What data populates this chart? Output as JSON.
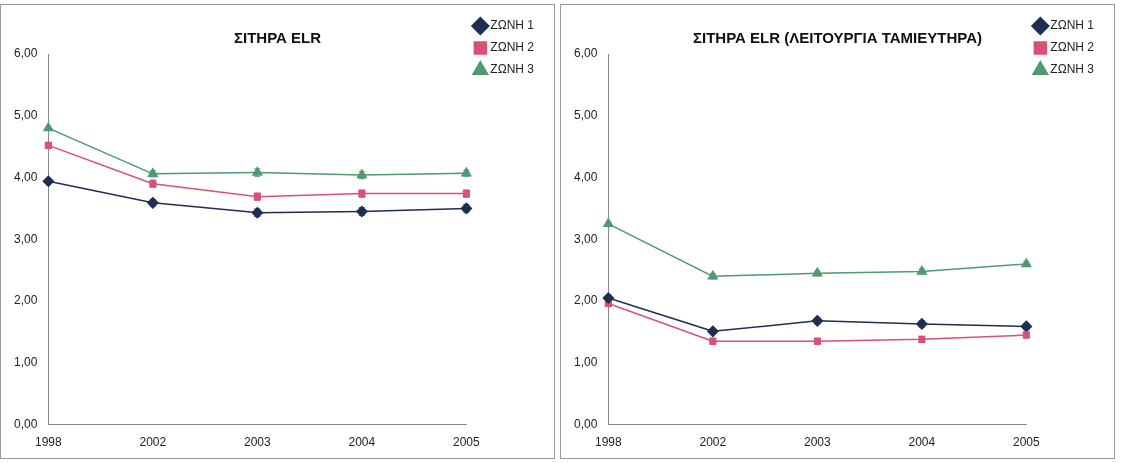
{
  "chart_data": [
    {
      "type": "line",
      "title": "ΣΙΤΗΡΑ ELR",
      "categories": [
        "1998",
        "2002",
        "2003",
        "2004",
        "2005"
      ],
      "series": [
        {
          "name": "ΖΩΝΗ 1",
          "color": "#1f2f4f",
          "marker": "diamond",
          "values": [
            3.94,
            3.59,
            3.43,
            3.45,
            3.5
          ],
          "errors": [
            null,
            0.05,
            0.06,
            0.06,
            0.06
          ]
        },
        {
          "name": "ΖΩΝΗ 2",
          "color": "#d9507a",
          "marker": "square",
          "values": [
            4.52,
            3.9,
            3.69,
            3.74,
            3.74
          ],
          "errors": [
            null,
            0.06,
            0.06,
            0.06,
            0.06
          ]
        },
        {
          "name": "ΖΩΝΗ 3",
          "color": "#4f9a6f",
          "marker": "triangle",
          "values": [
            4.8,
            4.06,
            4.08,
            4.04,
            4.07
          ],
          "errors": [
            null,
            0.05,
            0.06,
            0.06,
            0.05
          ]
        }
      ],
      "ylim": [
        0,
        6
      ],
      "yticks": [
        {
          "value": 0,
          "label": "0,00"
        },
        {
          "value": 1,
          "label": "1,00"
        },
        {
          "value": 2,
          "label": "2,00"
        },
        {
          "value": 3,
          "label": "3,00"
        },
        {
          "value": 4,
          "label": "4,00"
        },
        {
          "value": 5,
          "label": "5,00"
        },
        {
          "value": 6,
          "label": "6,00"
        }
      ],
      "grid": false,
      "legend": "top right"
    },
    {
      "type": "line",
      "title": "ΣΙΤΗΡΑ ELR (ΛΕΙΤΟΥΡΓΙΑ ΤΑΜΙΕΥΤΗΡΑ)",
      "categories": [
        "1998",
        "2002",
        "2003",
        "2004",
        "2005"
      ],
      "series": [
        {
          "name": "ΖΩΝΗ 1",
          "color": "#1f2f4f",
          "marker": "diamond",
          "values": [
            2.05,
            1.51,
            1.68,
            1.63,
            1.59
          ],
          "errors": [
            null,
            0.04,
            0.05,
            0.05,
            0.05
          ]
        },
        {
          "name": "ΖΩΝΗ 2",
          "color": "#d9507a",
          "marker": "square",
          "values": [
            1.96,
            1.35,
            1.35,
            1.38,
            1.45
          ],
          "errors": [
            null,
            0.05,
            0.05,
            0.05,
            0.05
          ]
        },
        {
          "name": "ΖΩΝΗ 3",
          "color": "#4f9a6f",
          "marker": "triangle",
          "values": [
            3.25,
            2.4,
            2.45,
            2.48,
            2.6
          ],
          "errors": [
            null,
            0.04,
            0.04,
            0.04,
            0.04
          ]
        }
      ],
      "ylim": [
        0,
        6
      ],
      "yticks": [
        {
          "value": 0,
          "label": "0,00"
        },
        {
          "value": 1,
          "label": "1,00"
        },
        {
          "value": 2,
          "label": "2,00"
        },
        {
          "value": 3,
          "label": "3,00"
        },
        {
          "value": 4,
          "label": "4,00"
        },
        {
          "value": 5,
          "label": "5,00"
        },
        {
          "value": 6,
          "label": "6,00"
        }
      ],
      "grid": false,
      "legend": "top right"
    }
  ]
}
